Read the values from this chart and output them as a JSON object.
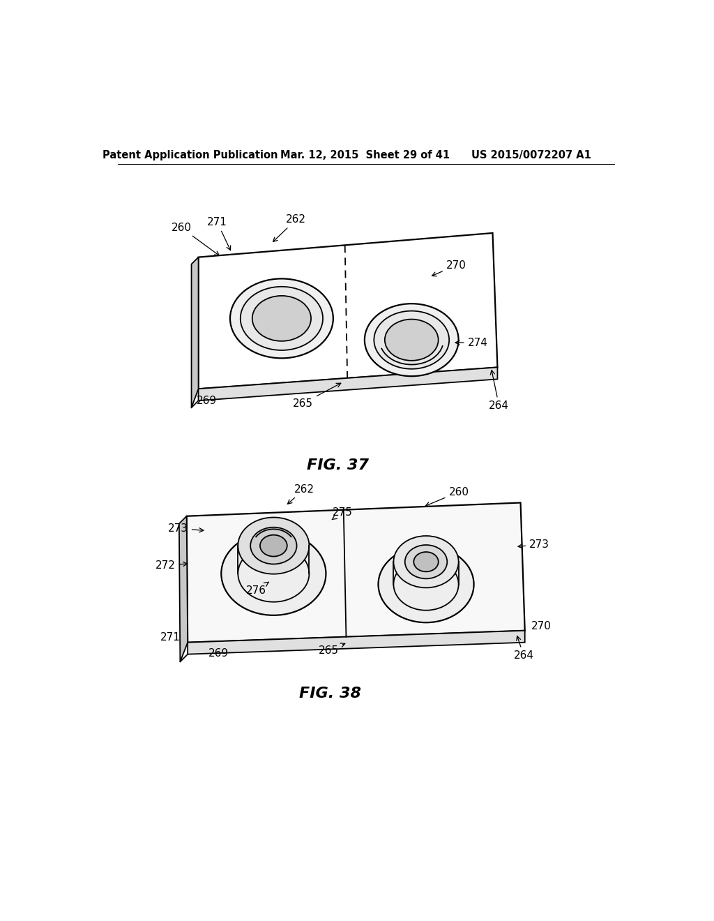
{
  "background_color": "#ffffff",
  "header_left": "Patent Application Publication",
  "header_mid": "Mar. 12, 2015  Sheet 29 of 41",
  "header_right": "US 2015/0072207 A1",
  "fig37_label": "FIG. 37",
  "fig38_label": "FIG. 38",
  "line_color": "#000000",
  "line_width": 1.3,
  "lw_thick": 1.6,
  "font_size_label": 11,
  "font_size_caption": 16
}
